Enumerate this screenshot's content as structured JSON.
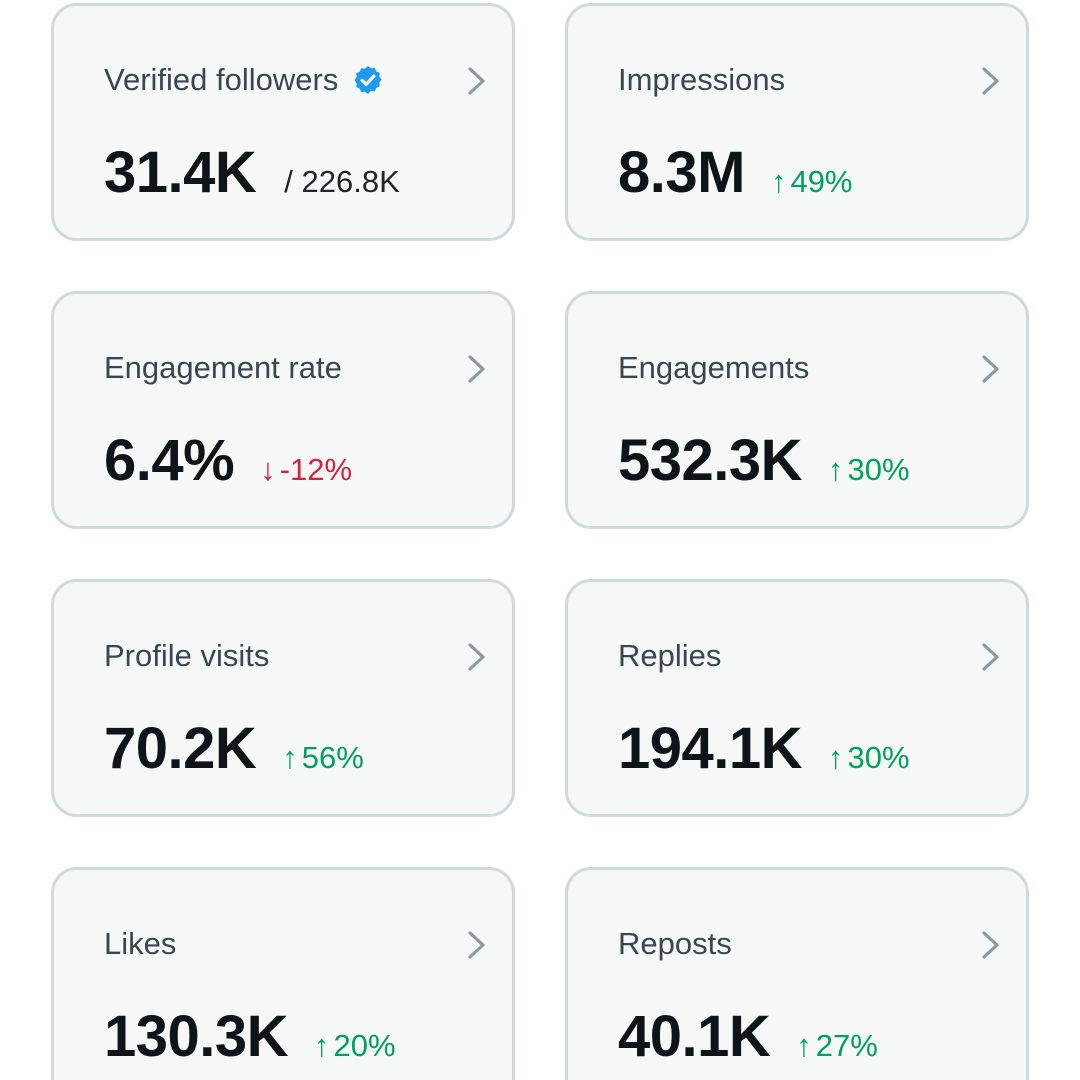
{
  "colors": {
    "card_background": "#f6f8f8",
    "card_border": "#cfd9de",
    "label_text": "#3c4650",
    "value_text": "#0f1419",
    "positive": "#00a15e",
    "negative": "#d6203c",
    "verified_badge": "#1d9bf0",
    "chevron": "#8b98a5"
  },
  "cards": [
    {
      "label": "Verified followers",
      "icon": "verified-badge-icon",
      "value": "31.4K",
      "total": "/ 226.8K"
    },
    {
      "label": "Impressions",
      "value": "8.3M",
      "change_arrow": "↑",
      "change": "49%",
      "trend": "up"
    },
    {
      "label": "Engagement rate",
      "value": "6.4%",
      "change_arrow": "↓",
      "change": "-12%",
      "trend": "down"
    },
    {
      "label": "Engagements",
      "value": "532.3K",
      "change_arrow": "↑",
      "change": "30%",
      "trend": "up"
    },
    {
      "label": "Profile visits",
      "value": "70.2K",
      "change_arrow": "↑",
      "change": "56%",
      "trend": "up"
    },
    {
      "label": "Replies",
      "value": "194.1K",
      "change_arrow": "↑",
      "change": "30%",
      "trend": "up"
    },
    {
      "label": "Likes",
      "value": "130.3K",
      "change_arrow": "↑",
      "change": "20%",
      "trend": "up"
    },
    {
      "label": "Reposts",
      "value": "40.1K",
      "change_arrow": "↑",
      "change": "27%",
      "trend": "up"
    }
  ]
}
